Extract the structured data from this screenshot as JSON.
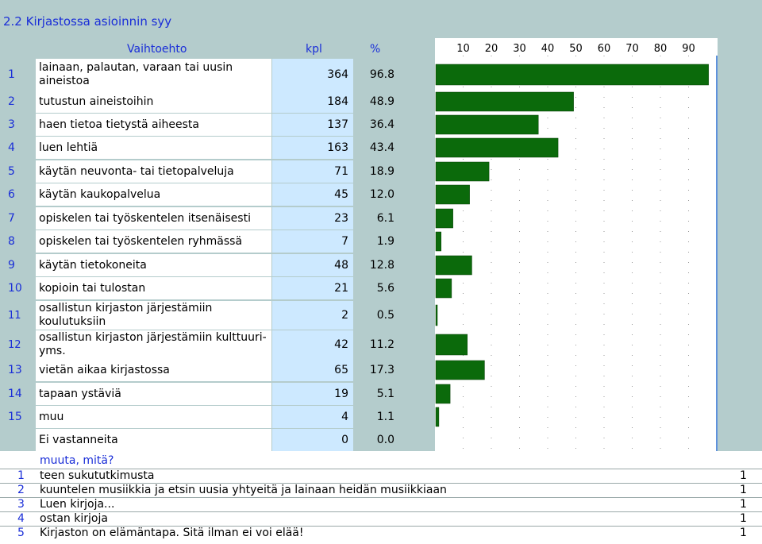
{
  "section_title": "2.2 Kirjastossa asioinnin syy",
  "table": {
    "headers": {
      "option": "Vaihtoehto",
      "count": "kpl",
      "percent": "%"
    },
    "rows": [
      {
        "num": "1",
        "label": "lainaan, palautan, varaan tai uusin aineistoa",
        "count": "364",
        "percent": "96.8"
      },
      {
        "num": "2",
        "label": "tutustun aineistoihin",
        "count": "184",
        "percent": "48.9"
      },
      {
        "num": "3",
        "label": "haen tietoa tietystä aiheesta",
        "count": "137",
        "percent": "36.4"
      },
      {
        "num": "4",
        "label": "luen lehtiä",
        "count": "163",
        "percent": "43.4"
      },
      {
        "num": "5",
        "label": "käytän neuvonta- tai tietopalveluja",
        "count": "71",
        "percent": "18.9"
      },
      {
        "num": "6",
        "label": "käytän kaukopalvelua",
        "count": "45",
        "percent": "12.0"
      },
      {
        "num": "7",
        "label": "opiskelen tai työskentelen itsenäisesti",
        "count": "23",
        "percent": "6.1"
      },
      {
        "num": "8",
        "label": "opiskelen tai työskentelen ryhmässä",
        "count": "7",
        "percent": "1.9"
      },
      {
        "num": "9",
        "label": "käytän tietokoneita",
        "count": "48",
        "percent": "12.8"
      },
      {
        "num": "10",
        "label": "kopioin tai tulostan",
        "count": "21",
        "percent": "5.6"
      },
      {
        "num": "11",
        "label": "osallistun kirjaston järjestämiin koulutuksiin",
        "count": "2",
        "percent": "0.5"
      },
      {
        "num": "12",
        "label": "osallistun kirjaston järjestämiin kulttuuri- yms.",
        "count": "42",
        "percent": "11.2"
      },
      {
        "num": "13",
        "label": "vietän aikaa kirjastossa",
        "count": "65",
        "percent": "17.3"
      },
      {
        "num": "14",
        "label": "tapaan ystäviä",
        "count": "19",
        "percent": "5.1"
      },
      {
        "num": "15",
        "label": "muu",
        "count": "4",
        "percent": "1.1"
      },
      {
        "num": "",
        "label": "Ei vastanneita",
        "count": "0",
        "percent": "0.0"
      }
    ]
  },
  "chart_data": {
    "type": "bar",
    "orientation": "horizontal",
    "categories": [
      "1",
      "2",
      "3",
      "4",
      "5",
      "6",
      "7",
      "8",
      "9",
      "10",
      "11",
      "12",
      "13",
      "14",
      "15",
      ""
    ],
    "values": [
      96.8,
      48.9,
      36.4,
      43.4,
      18.9,
      12.0,
      6.1,
      1.9,
      12.8,
      5.6,
      0.5,
      11.2,
      17.3,
      5.1,
      1.1,
      0.0
    ],
    "xlim": [
      0,
      100
    ],
    "tick_labels": [
      "10",
      "20",
      "30",
      "40",
      "50",
      "60",
      "70",
      "80",
      "90"
    ],
    "grid": true,
    "bar_color": "#0b6a0b"
  },
  "other_answers": {
    "title": "muuta, mitä?",
    "rows": [
      {
        "num": "1",
        "text": "teen sukututkimusta",
        "count": "1"
      },
      {
        "num": "2",
        "text": "kuuntelen musiikkia ja etsin uusia yhtyeitä ja lainaan heidän musiikkiaan",
        "count": "1"
      },
      {
        "num": "3",
        "text": "Luen kirjoja...",
        "count": "1"
      },
      {
        "num": "4",
        "text": "ostan kirjoja",
        "count": "1"
      },
      {
        "num": "5",
        "text": "Kirjaston on elämäntapa. Sitä ilman ei voi elää!",
        "count": "1"
      }
    ]
  }
}
